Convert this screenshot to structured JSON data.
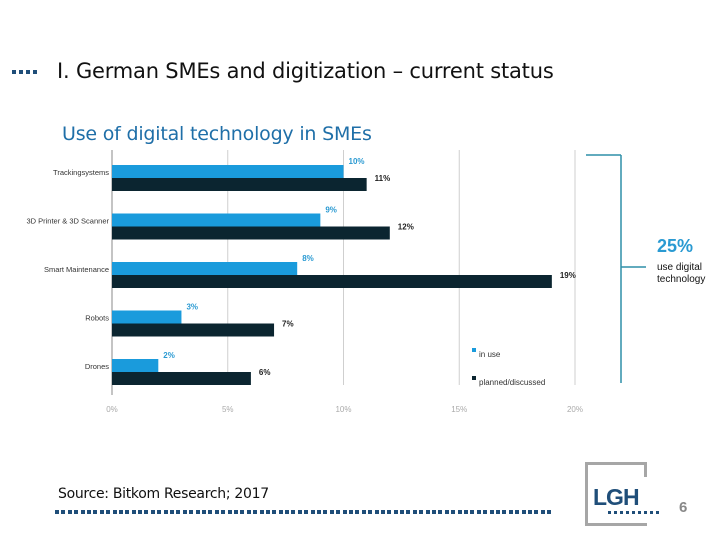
{
  "slide": {
    "title": "I. German SMEs and digitization – current status",
    "source": "Source: Bitkom Research; 2017",
    "page_number": "6",
    "logo_text": "LGH"
  },
  "callout": {
    "value": "25%",
    "text": "use digital technology"
  },
  "colors": {
    "in_use": "#1a9bdc",
    "planned": "#0b2530",
    "title_blue": "#1f6fa8",
    "dark_blue": "#1f4e79",
    "callout_line": "#2f8fa8"
  },
  "chart_data": {
    "type": "bar",
    "orientation": "horizontal",
    "title": "Use of digital technology in SMEs",
    "categories": [
      "Trackingsystems",
      "3D Printer & 3D Scanner",
      "Smart Maintenance",
      "Robots",
      "Drones"
    ],
    "series": [
      {
        "name": "in use",
        "values": [
          10,
          9,
          8,
          3,
          2
        ],
        "labels": [
          "10%",
          "9%",
          "8%",
          "3%",
          "2%"
        ]
      },
      {
        "name": "planned/discussed",
        "values": [
          11,
          12,
          19,
          7,
          6
        ],
        "labels": [
          "11%",
          "12%",
          "19%",
          "7%",
          "6%"
        ]
      }
    ],
    "xlim": [
      0,
      20
    ],
    "xticks": [
      "0%",
      "5%",
      "10%",
      "15%",
      "20%"
    ],
    "xlabel": "",
    "ylabel": "",
    "grid": true,
    "legend": "bottom-right"
  }
}
